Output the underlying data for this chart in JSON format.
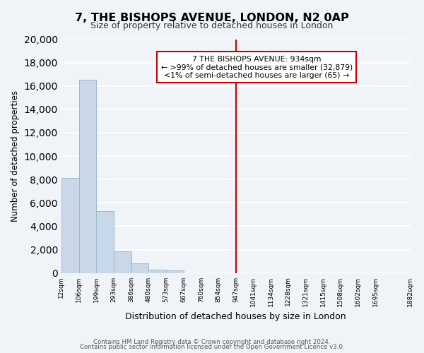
{
  "title": "7, THE BISHOPS AVENUE, LONDON, N2 0AP",
  "subtitle": "Size of property relative to detached houses in London",
  "xlabel": "Distribution of detached houses by size in London",
  "ylabel": "Number of detached properties",
  "bar_values": [
    8150,
    16550,
    5300,
    1850,
    800,
    300,
    250,
    0,
    0,
    0,
    0,
    0,
    0,
    0,
    0,
    0,
    0,
    0,
    0
  ],
  "bin_edges": [
    12,
    106,
    199,
    293,
    386,
    480,
    573,
    667,
    760,
    854,
    947,
    1041,
    1134,
    1228,
    1321,
    1415,
    1508,
    1602,
    1695,
    1882
  ],
  "tick_labels": [
    "12sqm",
    "106sqm",
    "199sqm",
    "293sqm",
    "386sqm",
    "480sqm",
    "573sqm",
    "667sqm",
    "760sqm",
    "854sqm",
    "947sqm",
    "1041sqm",
    "1134sqm",
    "1228sqm",
    "1321sqm",
    "1415sqm",
    "1508sqm",
    "1602sqm",
    "1695sqm",
    "1882sqm"
  ],
  "bar_color": "#c8d8e8",
  "bar_edge_color": "#a0b8cc",
  "vline_x": 947,
  "vline_color": "#cc0000",
  "ylim": [
    0,
    20000
  ],
  "yticks": [
    0,
    2000,
    4000,
    6000,
    8000,
    10000,
    12000,
    14000,
    16000,
    18000,
    20000
  ],
  "annotation_title": "7 THE BISHOPS AVENUE: 934sqm",
  "annotation_line1": "← >99% of detached houses are smaller (32,879)",
  "annotation_line2": "<1% of semi-detached houses are larger (65) →",
  "footer_line1": "Contains HM Land Registry data © Crown copyright and database right 2024.",
  "footer_line2": "Contains public sector information licensed under the Open Government Licence v3.0.",
  "bg_color": "#f0f4f8",
  "grid_color": "#ffffff"
}
